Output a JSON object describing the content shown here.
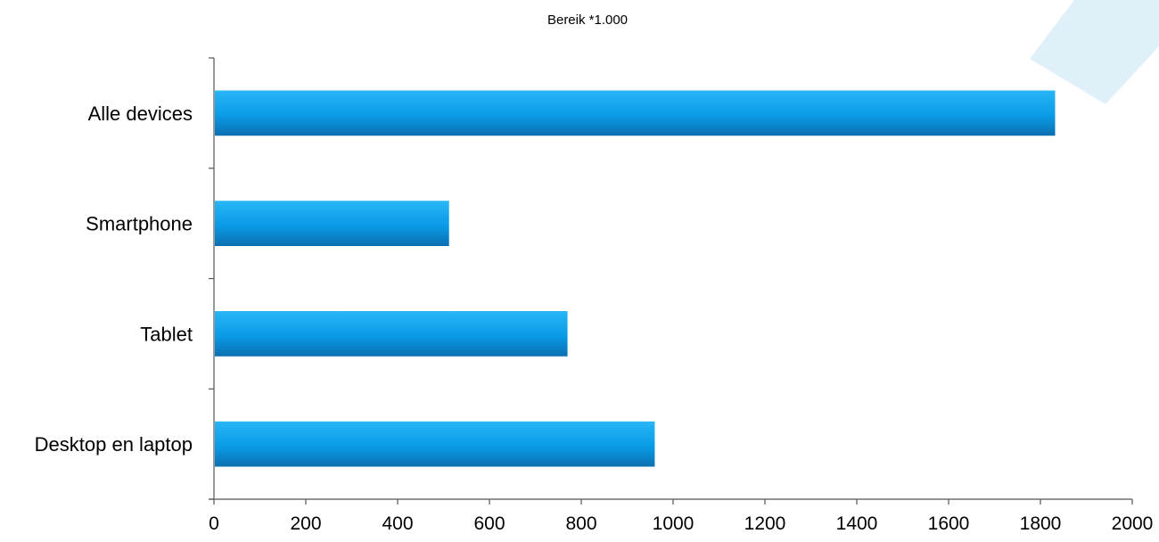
{
  "chart_data": {
    "type": "bar",
    "orientation": "horizontal",
    "title": "Bereik *1.000",
    "xlabel": "",
    "ylabel": "",
    "categories": [
      "Alle devices",
      "Smartphone",
      "Tablet",
      "Desktop en laptop"
    ],
    "values": [
      1832,
      512,
      770,
      960
    ],
    "xlim": [
      0,
      2000
    ],
    "xticks": [
      "0",
      "200",
      "400",
      "600",
      "800",
      "1000",
      "1200",
      "1400",
      "1600",
      "1800",
      "2000"
    ],
    "grid": false,
    "legend": "none",
    "colors": {
      "bar_top": "#29b6f6",
      "bar_mid": "#0a9be6",
      "bar_bottom": "#0b6fb0",
      "decoration": "#dff0f8"
    }
  }
}
